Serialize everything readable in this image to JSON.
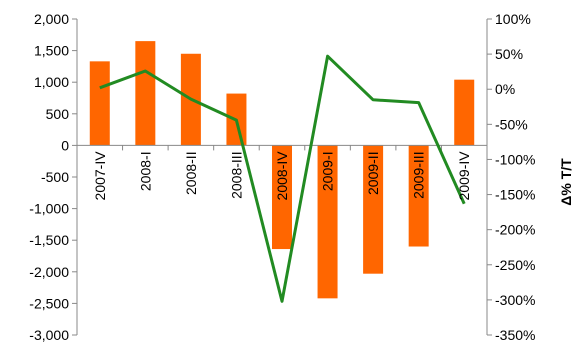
{
  "chart_data": {
    "type": "bar+line",
    "title": "",
    "categories": [
      "2007-IV",
      "2008-I",
      "2008-II",
      "2008-III",
      "2008-IV",
      "2009-I",
      "2009-II",
      "2009-III",
      "2009-IV"
    ],
    "series": [
      {
        "type": "bar",
        "axis": "left",
        "color": "#FF6600",
        "values": [
          1330,
          1650,
          1450,
          820,
          -1640,
          -2420,
          -2030,
          -1600,
          1040
        ]
      },
      {
        "type": "line",
        "axis": "right",
        "color": "#228B22",
        "values": [
          2,
          26,
          -14,
          -44,
          -302,
          47,
          -15,
          -19,
          -163
        ]
      }
    ],
    "y_left": {
      "label": "",
      "ylim": [
        -3000,
        2000
      ],
      "ticks": [
        2000,
        1500,
        1000,
        500,
        0,
        -500,
        -1000,
        -1500,
        -2000,
        -2500,
        -3000
      ],
      "tick_labels": [
        "2,000",
        "1,500",
        "1,000",
        "500",
        "0",
        "-500",
        "-1,000",
        "-1,500",
        "-2,000",
        "-2,500",
        "-3,000"
      ]
    },
    "y_right": {
      "label": "Δ% T/T",
      "ylim": [
        -350,
        100
      ],
      "ticks": [
        100,
        50,
        0,
        -50,
        -100,
        -150,
        -200,
        -250,
        -300,
        -350
      ],
      "tick_labels": [
        "100%",
        "50%",
        "0%",
        "-50%",
        "-100%",
        "-150%",
        "-200%",
        "-250%",
        "-300%",
        "-350%"
      ]
    },
    "grid": false,
    "legend": "none"
  }
}
